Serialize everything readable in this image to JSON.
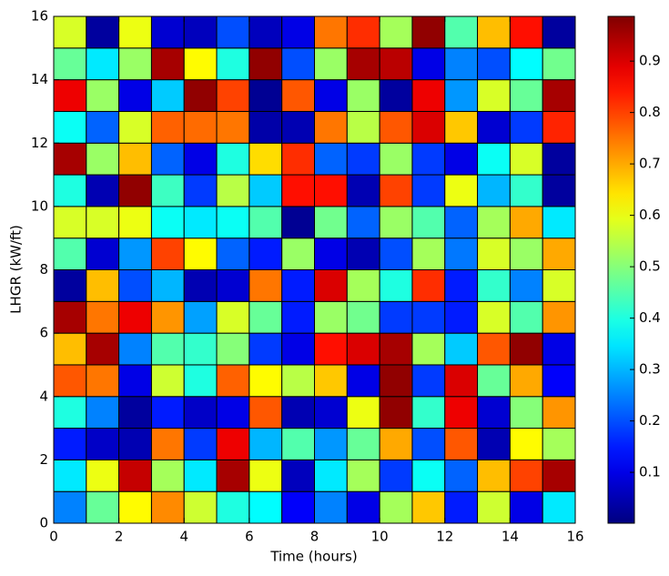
{
  "chart_data": {
    "type": "heatmap",
    "xlabel": "Time (hours)",
    "ylabel": "LHGR (kW/ft)",
    "xlim": [
      0,
      16
    ],
    "ylim": [
      0,
      16
    ],
    "xticks": [
      0,
      2,
      4,
      6,
      8,
      10,
      12,
      14,
      16
    ],
    "yticks": [
      0,
      2,
      4,
      6,
      8,
      10,
      12,
      14,
      16
    ],
    "colormap": "jet",
    "clim": [
      0.001,
      0.987
    ],
    "cticks": [
      0.1,
      0.2,
      0.3,
      0.4,
      0.5,
      0.6,
      0.7,
      0.8,
      0.9
    ],
    "z": [
      [
        0.25,
        0.47,
        0.62,
        0.73,
        0.57,
        0.4,
        0.37,
        0.12,
        0.25,
        0.1,
        0.53,
        0.67,
        0.15,
        0.57,
        0.1,
        0.35
      ],
      [
        0.35,
        0.6,
        0.92,
        0.53,
        0.35,
        0.95,
        0.6,
        0.06,
        0.35,
        0.53,
        0.18,
        0.38,
        0.22,
        0.68,
        0.8,
        0.95
      ],
      [
        0.15,
        0.07,
        0.05,
        0.75,
        0.18,
        0.88,
        0.3,
        0.45,
        0.27,
        0.47,
        0.7,
        0.2,
        0.78,
        0.05,
        0.62,
        0.53
      ],
      [
        0.4,
        0.25,
        0.03,
        0.15,
        0.07,
        0.1,
        0.78,
        0.05,
        0.08,
        0.6,
        0.97,
        0.42,
        0.88,
        0.08,
        0.5,
        0.72
      ],
      [
        0.78,
        0.75,
        0.1,
        0.57,
        0.4,
        0.77,
        0.62,
        0.55,
        0.67,
        0.1,
        0.97,
        0.18,
        0.9,
        0.47,
        0.7,
        0.12
      ],
      [
        0.68,
        0.95,
        0.25,
        0.45,
        0.42,
        0.5,
        0.18,
        0.1,
        0.85,
        0.9,
        0.95,
        0.53,
        0.32,
        0.78,
        0.97,
        0.1
      ],
      [
        0.95,
        0.75,
        0.88,
        0.72,
        0.28,
        0.58,
        0.47,
        0.15,
        0.52,
        0.48,
        0.18,
        0.18,
        0.15,
        0.58,
        0.45,
        0.72
      ],
      [
        0.03,
        0.68,
        0.2,
        0.3,
        0.05,
        0.08,
        0.75,
        0.15,
        0.9,
        0.53,
        0.4,
        0.82,
        0.15,
        0.42,
        0.25,
        0.58
      ],
      [
        0.45,
        0.08,
        0.27,
        0.8,
        0.62,
        0.22,
        0.15,
        0.52,
        0.1,
        0.05,
        0.2,
        0.53,
        0.24,
        0.58,
        0.52,
        0.7
      ],
      [
        0.58,
        0.58,
        0.6,
        0.38,
        0.35,
        0.38,
        0.45,
        0.02,
        0.48,
        0.22,
        0.52,
        0.45,
        0.22,
        0.53,
        0.7,
        0.35
      ],
      [
        0.4,
        0.05,
        0.97,
        0.43,
        0.18,
        0.55,
        0.32,
        0.85,
        0.85,
        0.05,
        0.8,
        0.18,
        0.6,
        0.3,
        0.42,
        0.03
      ],
      [
        0.95,
        0.52,
        0.68,
        0.22,
        0.1,
        0.4,
        0.65,
        0.82,
        0.22,
        0.18,
        0.52,
        0.18,
        0.1,
        0.38,
        0.58,
        0.03
      ],
      [
        0.38,
        0.22,
        0.58,
        0.77,
        0.76,
        0.75,
        0.04,
        0.05,
        0.75,
        0.55,
        0.78,
        0.9,
        0.67,
        0.08,
        0.18,
        0.83
      ],
      [
        0.88,
        0.52,
        0.1,
        0.32,
        0.97,
        0.8,
        0.02,
        0.78,
        0.1,
        0.52,
        0.03,
        0.88,
        0.27,
        0.58,
        0.47,
        0.95
      ],
      [
        0.47,
        0.35,
        0.52,
        0.95,
        0.62,
        0.4,
        0.97,
        0.2,
        0.52,
        0.95,
        0.93,
        0.1,
        0.25,
        0.2,
        0.37,
        0.48
      ],
      [
        0.58,
        0.03,
        0.6,
        0.08,
        0.06,
        0.2,
        0.06,
        0.1,
        0.75,
        0.82,
        0.53,
        0.97,
        0.45,
        0.68,
        0.85,
        0.03
      ]
    ]
  }
}
